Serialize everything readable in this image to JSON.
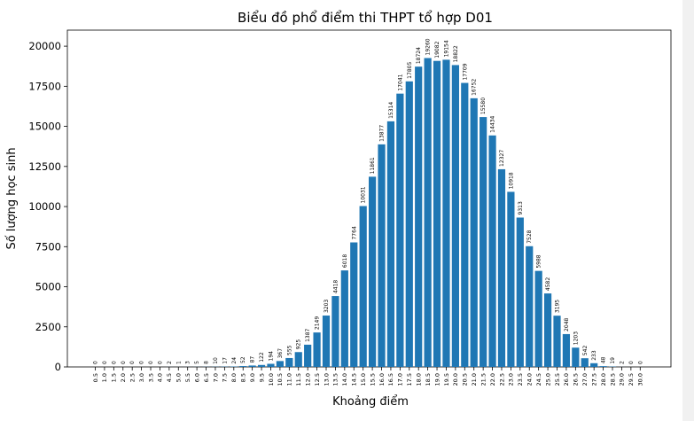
{
  "chart_data": {
    "type": "bar",
    "title": "Biểu đồ phổ điểm thi THPT tổ hợp D01",
    "xlabel": "Khoảng điểm",
    "ylabel": "Số lượng học sinh",
    "ylim": [
      0,
      21000
    ],
    "yticks": [
      0,
      2500,
      5000,
      7500,
      10000,
      12500,
      15000,
      17500,
      20000
    ],
    "bar_color": "#1f77b4",
    "categories": [
      "0.5",
      "1.0",
      "1.5",
      "2.0",
      "2.5",
      "3.0",
      "3.5",
      "4.0",
      "4.5",
      "5.0",
      "5.5",
      "6.0",
      "6.5",
      "7.0",
      "7.5",
      "8.0",
      "8.5",
      "9.0",
      "9.5",
      "10.0",
      "10.5",
      "11.0",
      "11.5",
      "12.0",
      "12.5",
      "13.0",
      "13.5",
      "14.0",
      "14.5",
      "15.0",
      "15.5",
      "16.0",
      "16.5",
      "17.0",
      "17.5",
      "18.0",
      "18.5",
      "19.0",
      "19.5",
      "20.0",
      "20.5",
      "21.0",
      "21.5",
      "22.0",
      "22.5",
      "23.0",
      "23.5",
      "24.0",
      "24.5",
      "25.0",
      "25.5",
      "26.0",
      "26.5",
      "27.0",
      "27.5",
      "28.0",
      "28.5",
      "29.0",
      "29.5",
      "30.0"
    ],
    "values": [
      0,
      0,
      0,
      0,
      0,
      0,
      0,
      0,
      2,
      1,
      3,
      5,
      8,
      10,
      17,
      24,
      52,
      87,
      122,
      194,
      367,
      555,
      925,
      1387,
      2149,
      3203,
      4418,
      6018,
      7764,
      10031,
      11861,
      13877,
      15314,
      17041,
      17805,
      18724,
      19260,
      19082,
      19154,
      18822,
      17709,
      16752,
      15580,
      14434,
      12327,
      10918,
      9313,
      7528,
      5988,
      4582,
      3195,
      2048,
      1203,
      542,
      233,
      48,
      19,
      2,
      0,
      0
    ]
  }
}
